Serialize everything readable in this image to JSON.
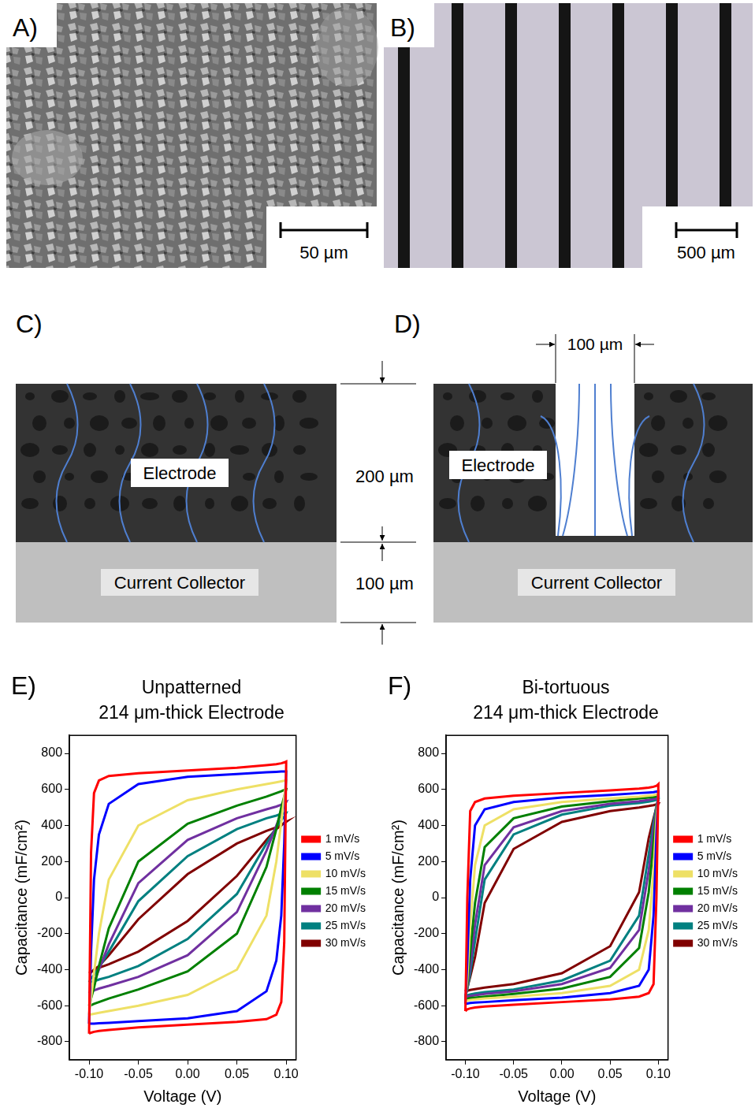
{
  "images": [
    {
      "letter": "A)",
      "scale_bar": "50 µm"
    },
    {
      "letter": "B)",
      "scale_bar": "500 µm"
    }
  ],
  "diagrams": [
    {
      "letter": "C)",
      "labels": [
        "Electrode",
        "Current Collector"
      ],
      "dimensions": [
        "200 µm",
        "100 µm"
      ]
    },
    {
      "letter": "D)",
      "labels": [
        "Electrode",
        "Current Collector"
      ],
      "dimensions": [
        "100 µm"
      ]
    }
  ],
  "chart_data": [
    {
      "letter": "E)",
      "type": "line",
      "title": "Unpatterned",
      "subtitle": "214 μm-thick Electrode",
      "x_label": "Voltage (V)",
      "y_label": "Capacitance (mF/cm²)",
      "x": [
        -0.1,
        -0.098,
        -0.095,
        -0.09,
        -0.08,
        -0.05,
        0,
        0.05,
        0.08,
        0.09,
        0.095,
        0.098,
        0.1,
        0.098,
        0.095,
        0.09,
        0.08,
        0.05,
        0,
        -0.05,
        -0.08,
        -0.09,
        -0.095,
        -0.098,
        -0.1
      ],
      "xlim": [
        -0.12,
        0.11
      ],
      "xticks": [
        {
          "value": -0.1,
          "label": "-0.10"
        },
        -0.05,
        {
          "value": 0,
          "label": "0.00"
        },
        0.05,
        {
          "value": 0.1,
          "label": "0.10"
        }
      ],
      "ylim": [
        -900,
        900
      ],
      "yticks": [
        -800,
        -600,
        -400,
        -200,
        0,
        200,
        400,
        600,
        800
      ],
      "grid": false,
      "legend": "right",
      "series": [
        {
          "name": "1 mV/s",
          "color": "#ff0000",
          "values": [
            -755,
            250,
            580,
            650,
            675,
            690,
            705,
            720,
            735,
            740,
            745,
            750,
            755,
            -250,
            -580,
            -650,
            -675,
            -690,
            -705,
            -720,
            -735,
            -740,
            -745,
            -750,
            -755
          ]
        },
        {
          "name": "5 mV/s",
          "color": "#0000ff",
          "values": [
            -700,
            -300,
            100,
            350,
            520,
            630,
            670,
            685,
            695,
            698,
            700,
            700,
            700,
            300,
            -100,
            -350,
            -520,
            -630,
            -670,
            -685,
            -695,
            -698,
            -700,
            -700,
            -700
          ]
        },
        {
          "name": "10 mV/s",
          "color": "#eee066",
          "values": [
            -650,
            -560,
            -420,
            -200,
            100,
            400,
            540,
            600,
            630,
            640,
            645,
            648,
            650,
            560,
            420,
            200,
            -100,
            -400,
            -540,
            -600,
            -630,
            -640,
            -645,
            -648,
            -650
          ]
        },
        {
          "name": "15 mV/s",
          "color": "#008000",
          "values": [
            -600,
            -560,
            -500,
            -380,
            -170,
            200,
            410,
            510,
            560,
            580,
            590,
            597,
            600,
            560,
            500,
            380,
            170,
            -200,
            -410,
            -510,
            -560,
            -580,
            -590,
            -597,
            -600
          ]
        },
        {
          "name": "20 mV/s",
          "color": "#7030a0",
          "values": [
            -530,
            -510,
            -470,
            -400,
            -260,
            80,
            320,
            440,
            490,
            505,
            515,
            525,
            530,
            510,
            470,
            400,
            260,
            -80,
            -320,
            -440,
            -490,
            -505,
            -515,
            -525,
            -530
          ]
        },
        {
          "name": "25 mV/s",
          "color": "#008080",
          "values": [
            -470,
            -450,
            -430,
            -390,
            -300,
            -20,
            230,
            380,
            440,
            455,
            465,
            468,
            470,
            450,
            430,
            390,
            300,
            20,
            -230,
            -380,
            -440,
            -455,
            -465,
            -468,
            -470
          ]
        },
        {
          "name": "30 mV/s",
          "color": "#800000",
          "values": [
            -420,
            -415,
            -400,
            -380,
            -320,
            -120,
            130,
            300,
            370,
            390,
            405,
            412,
            420,
            415,
            400,
            380,
            320,
            120,
            -130,
            -300,
            -370,
            -390,
            -405,
            -412,
            -420
          ]
        }
      ]
    },
    {
      "letter": "F)",
      "type": "line",
      "title": "Bi-tortuous",
      "subtitle": "214 μm-thick Electrode",
      "x_label": "Voltage (V)",
      "y_label": "Capacitance (mF/cm²)",
      "x": [
        -0.1,
        -0.098,
        -0.095,
        -0.09,
        -0.08,
        -0.05,
        0,
        0.05,
        0.08,
        0.09,
        0.095,
        0.098,
        0.1,
        0.098,
        0.095,
        0.09,
        0.08,
        0.05,
        0,
        -0.05,
        -0.08,
        -0.09,
        -0.095,
        -0.098,
        -0.1
      ],
      "xlim": [
        -0.12,
        0.11
      ],
      "xticks": [
        {
          "value": -0.1,
          "label": "-0.10"
        },
        -0.05,
        {
          "value": 0,
          "label": "0.00"
        },
        0.05,
        {
          "value": 0.1,
          "label": "0.10"
        }
      ],
      "ylim": [
        -900,
        900
      ],
      "yticks": [
        -800,
        -600,
        -400,
        -200,
        0,
        200,
        400,
        600,
        800
      ],
      "grid": false,
      "legend": "right",
      "series": [
        {
          "name": "1 mV/s",
          "color": "#ff0000",
          "values": [
            -630,
            0,
            480,
            530,
            550,
            565,
            580,
            595,
            605,
            610,
            615,
            620,
            630,
            0,
            -480,
            -530,
            -550,
            -565,
            -580,
            -595,
            -605,
            -610,
            -615,
            -620,
            -630
          ]
        },
        {
          "name": "5 mV/s",
          "color": "#0000ff",
          "values": [
            -590,
            -350,
            100,
            400,
            490,
            530,
            555,
            570,
            580,
            583,
            585,
            588,
            590,
            350,
            -100,
            -400,
            -490,
            -530,
            -555,
            -570,
            -580,
            -583,
            -585,
            -588,
            -590
          ]
        },
        {
          "name": "10 mV/s",
          "color": "#eee066",
          "values": [
            -575,
            -450,
            -150,
            180,
            400,
            490,
            530,
            550,
            560,
            565,
            568,
            572,
            575,
            450,
            150,
            -180,
            -400,
            -490,
            -530,
            -550,
            -560,
            -565,
            -568,
            -572,
            -575
          ]
        },
        {
          "name": "15 mV/s",
          "color": "#008000",
          "values": [
            -565,
            -480,
            -300,
            -30,
            280,
            440,
            505,
            535,
            550,
            555,
            558,
            562,
            565,
            480,
            300,
            30,
            -280,
            -440,
            -505,
            -535,
            -550,
            -555,
            -558,
            -562,
            -565
          ]
        },
        {
          "name": "20 mV/s",
          "color": "#7030a0",
          "values": [
            -555,
            -500,
            -380,
            -150,
            180,
            390,
            480,
            520,
            535,
            542,
            547,
            551,
            555,
            500,
            380,
            150,
            -180,
            -390,
            -480,
            -520,
            -535,
            -542,
            -547,
            -551,
            -555
          ]
        },
        {
          "name": "25 mV/s",
          "color": "#008080",
          "values": [
            -545,
            -510,
            -420,
            -240,
            100,
            350,
            460,
            510,
            525,
            532,
            538,
            542,
            545,
            510,
            420,
            240,
            -100,
            -350,
            -460,
            -510,
            -525,
            -532,
            -538,
            -542,
            -545
          ]
        },
        {
          "name": "30 mV/s",
          "color": "#800000",
          "values": [
            -520,
            -500,
            -440,
            -330,
            -30,
            270,
            420,
            480,
            500,
            508,
            513,
            517,
            520,
            500,
            440,
            330,
            30,
            -270,
            -420,
            -480,
            -500,
            -508,
            -513,
            -517,
            -520
          ]
        }
      ]
    }
  ]
}
